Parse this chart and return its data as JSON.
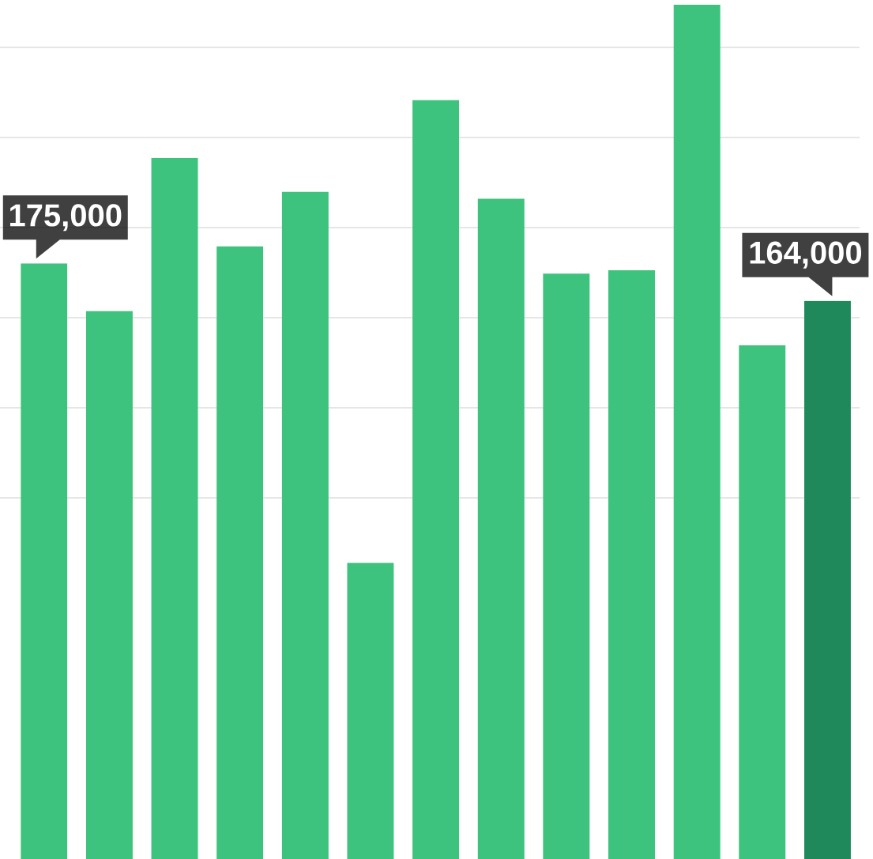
{
  "chart_data": {
    "type": "bar",
    "categories": [
      null,
      null,
      null,
      null,
      null,
      null,
      null,
      null,
      null,
      null,
      null,
      null,
      null
    ],
    "values": [
      175000,
      161000,
      206000,
      180000,
      196000,
      87000,
      223000,
      194000,
      172000,
      173000,
      251000,
      151000,
      164000
    ],
    "colors": [
      "#3dc37d",
      "#3dc37d",
      "#3dc37d",
      "#3dc37d",
      "#3dc37d",
      "#3dc37d",
      "#3dc37d",
      "#3dc37d",
      "#3dc37d",
      "#3dc37d",
      "#3dc37d",
      "#3dc37d",
      "#20895c"
    ],
    "value_labels": [
      "175,000",
      null,
      null,
      null,
      null,
      null,
      null,
      null,
      null,
      null,
      null,
      null,
      "164,000"
    ],
    "grid": "y"
  }
}
